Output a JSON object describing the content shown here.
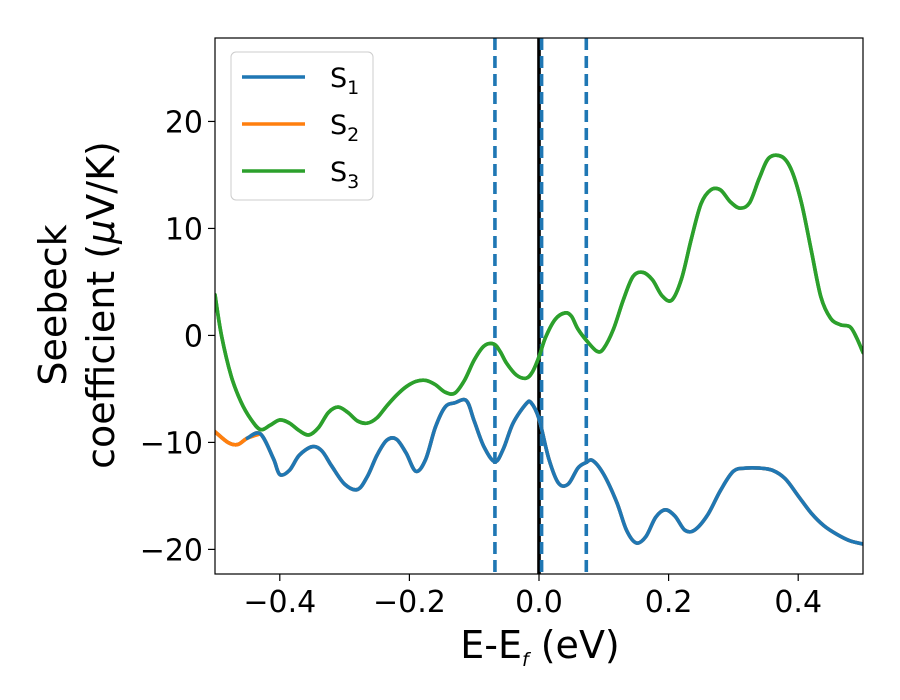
{
  "chart_data": {
    "type": "line",
    "title": "",
    "xlabel": {
      "main": "E-E",
      "sub": "f",
      "unit": " (eV)"
    },
    "ylabel": {
      "line1": "Seebeck",
      "line2": "coefficient  (",
      "mu": "μ",
      "line2_end": "V/K)"
    },
    "xlim": [
      -0.5,
      0.5
    ],
    "ylim": [
      -22.3,
      27.8
    ],
    "xticks": [
      -0.4,
      -0.2,
      0.0,
      0.2,
      0.4
    ],
    "xtick_labels": [
      "−0.4",
      "−0.2",
      "0.0",
      "0.2",
      "0.4"
    ],
    "yticks": [
      -20,
      -10,
      0,
      10,
      20
    ],
    "ytick_labels": [
      "−20",
      "−10",
      "0",
      "10",
      "20"
    ],
    "legend_position": "top-left",
    "vertical_lines": [
      {
        "x": -0.068,
        "style": "dashed",
        "color": "#1f77b4"
      },
      {
        "x": 0.0,
        "style": "solid",
        "color": "#000000"
      },
      {
        "x": 0.004,
        "style": "dashed",
        "color": "#1f77b4"
      },
      {
        "x": 0.073,
        "style": "dashed",
        "color": "#1f77b4"
      }
    ],
    "series": [
      {
        "name": "S",
        "subscript": "1",
        "color": "#1f77b4",
        "x": [
          -0.5,
          -0.48,
          -0.465,
          -0.45,
          -0.43,
          -0.41,
          -0.4,
          -0.385,
          -0.37,
          -0.35,
          -0.335,
          -0.32,
          -0.3,
          -0.28,
          -0.265,
          -0.25,
          -0.235,
          -0.22,
          -0.205,
          -0.19,
          -0.175,
          -0.16,
          -0.145,
          -0.13,
          -0.112,
          -0.1,
          -0.085,
          -0.068,
          -0.055,
          -0.04,
          -0.02,
          -0.012,
          0.0,
          0.015,
          0.03,
          0.045,
          0.06,
          0.072,
          0.083,
          0.1,
          0.12,
          0.135,
          0.15,
          0.165,
          0.18,
          0.195,
          0.21,
          0.225,
          0.24,
          0.26,
          0.28,
          0.3,
          0.32,
          0.34,
          0.36,
          0.38,
          0.4,
          0.42,
          0.44,
          0.46,
          0.48,
          0.5
        ],
        "y": [
          -9.0,
          -10.0,
          -10.2,
          -9.6,
          -9.2,
          -11.5,
          -13.0,
          -12.6,
          -11.2,
          -10.4,
          -10.8,
          -12.2,
          -13.9,
          -14.4,
          -13.2,
          -11.2,
          -9.8,
          -9.7,
          -11.0,
          -12.7,
          -11.6,
          -8.6,
          -6.7,
          -6.3,
          -6.1,
          -8.0,
          -10.4,
          -11.8,
          -10.6,
          -8.2,
          -6.4,
          -6.3,
          -7.8,
          -11.5,
          -13.8,
          -13.9,
          -12.4,
          -11.9,
          -11.7,
          -13.0,
          -15.6,
          -18.2,
          -19.4,
          -18.8,
          -17.0,
          -16.3,
          -16.9,
          -18.2,
          -18.2,
          -16.8,
          -14.5,
          -12.7,
          -12.4,
          -12.4,
          -12.6,
          -13.4,
          -15.0,
          -16.6,
          -17.8,
          -18.6,
          -19.2,
          -19.5
        ]
      },
      {
        "name": "S",
        "subscript": "2",
        "color": "#ff7f0e",
        "x": [
          -0.5,
          -0.48,
          -0.465,
          -0.45,
          -0.43,
          -0.41,
          -0.4,
          -0.385,
          -0.37,
          -0.35,
          -0.335,
          -0.32,
          -0.3,
          -0.28,
          -0.265,
          -0.25,
          -0.235,
          -0.22,
          -0.205,
          -0.19,
          -0.175,
          -0.16,
          -0.145,
          -0.13,
          -0.112,
          -0.1,
          -0.085,
          -0.068,
          -0.055,
          -0.04,
          -0.02,
          -0.012,
          0.0,
          0.015,
          0.03,
          0.045,
          0.06,
          0.072,
          0.083,
          0.1,
          0.12,
          0.135,
          0.15,
          0.165,
          0.18,
          0.195,
          0.21,
          0.225,
          0.24,
          0.26,
          0.28,
          0.3,
          0.32,
          0.34,
          0.36,
          0.38,
          0.4,
          0.42,
          0.44,
          0.46,
          0.48,
          0.5
        ],
        "y": [
          -9.0,
          -10.0,
          -10.2,
          -9.6,
          -9.2,
          -11.5,
          -13.0,
          -12.6,
          -11.2,
          -10.4,
          -10.8,
          -12.2,
          -13.9,
          -14.4,
          -13.2,
          -11.2,
          -9.8,
          -9.7,
          -11.0,
          -12.7,
          -11.6,
          -8.6,
          -6.7,
          -6.3,
          -6.1,
          -8.0,
          -10.4,
          -11.8,
          -10.6,
          -8.2,
          -6.4,
          -6.3,
          -7.8,
          -11.5,
          -13.8,
          -13.9,
          -12.4,
          -11.9,
          -11.7,
          -13.0,
          -15.6,
          -18.2,
          -19.4,
          -18.8,
          -17.0,
          -16.3,
          -16.9,
          -18.2,
          -18.2,
          -16.8,
          -14.5,
          -12.7,
          -12.4,
          -12.4,
          -12.6,
          -13.4,
          -15.0,
          -16.6,
          -17.8,
          -18.6,
          -19.2,
          -19.5
        ]
      },
      {
        "name": "S",
        "subscript": "3",
        "color": "#2ca02c",
        "x": [
          -0.5,
          -0.49,
          -0.475,
          -0.46,
          -0.445,
          -0.43,
          -0.415,
          -0.4,
          -0.385,
          -0.37,
          -0.355,
          -0.34,
          -0.325,
          -0.31,
          -0.295,
          -0.28,
          -0.265,
          -0.25,
          -0.235,
          -0.22,
          -0.205,
          -0.19,
          -0.175,
          -0.16,
          -0.145,
          -0.13,
          -0.115,
          -0.1,
          -0.085,
          -0.07,
          -0.06,
          -0.05,
          -0.035,
          -0.02,
          -0.01,
          0.0,
          0.01,
          0.025,
          0.04,
          0.05,
          0.06,
          0.075,
          0.09,
          0.1,
          0.115,
          0.13,
          0.145,
          0.16,
          0.175,
          0.19,
          0.205,
          0.22,
          0.235,
          0.25,
          0.265,
          0.28,
          0.295,
          0.31,
          0.325,
          0.34,
          0.355,
          0.375,
          0.39,
          0.405,
          0.42,
          0.435,
          0.45,
          0.465,
          0.48,
          0.49,
          0.5
        ],
        "y": [
          3.8,
          0.0,
          -3.8,
          -6.2,
          -7.8,
          -8.8,
          -8.4,
          -7.9,
          -8.2,
          -8.9,
          -9.3,
          -8.6,
          -7.2,
          -6.7,
          -7.2,
          -8.0,
          -8.2,
          -7.7,
          -6.6,
          -5.6,
          -4.8,
          -4.3,
          -4.2,
          -4.6,
          -5.3,
          -5.4,
          -4.2,
          -2.3,
          -1.0,
          -0.8,
          -1.5,
          -2.6,
          -3.7,
          -4.0,
          -3.4,
          -2.0,
          -0.2,
          1.5,
          2.1,
          1.8,
          0.6,
          -0.6,
          -1.5,
          -1.2,
          0.6,
          3.3,
          5.5,
          5.9,
          5.2,
          3.7,
          3.3,
          5.3,
          9.0,
          12.3,
          13.6,
          13.6,
          12.5,
          11.9,
          12.4,
          14.7,
          16.6,
          16.7,
          15.4,
          12.4,
          8.0,
          3.6,
          1.6,
          1.0,
          0.8,
          -0.2,
          -1.6
        ]
      }
    ]
  }
}
